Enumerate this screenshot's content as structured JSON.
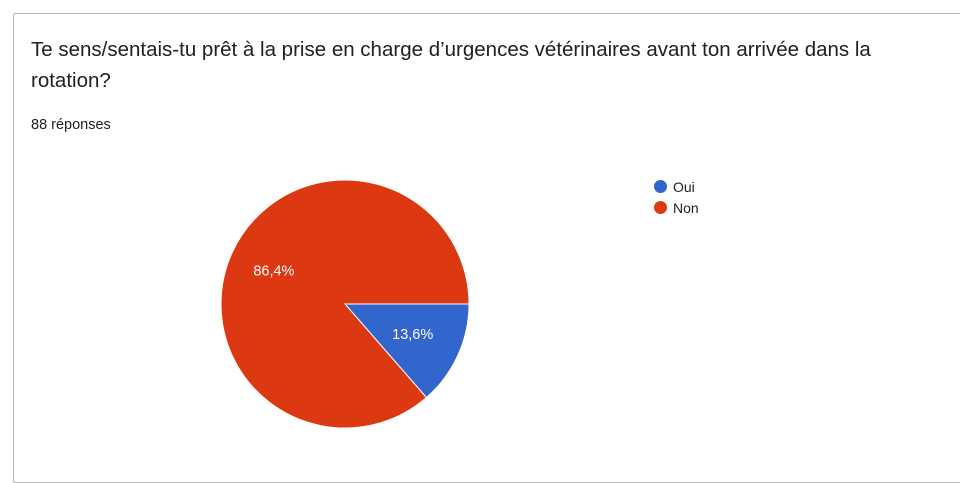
{
  "question": {
    "title": "Te sens/sentais-tu prêt à la prise en charge d’urgences vétérinaires avant ton arrivée dans la rotation?",
    "response_count": "88 réponses"
  },
  "chart_data": {
    "type": "pie",
    "categories": [
      "Oui",
      "Non"
    ],
    "values": [
      13.6,
      86.4
    ],
    "labels": [
      "13,6%",
      "86,4%"
    ],
    "colors": [
      "#3366cc",
      "#dc3912"
    ],
    "legend_position": "right"
  }
}
